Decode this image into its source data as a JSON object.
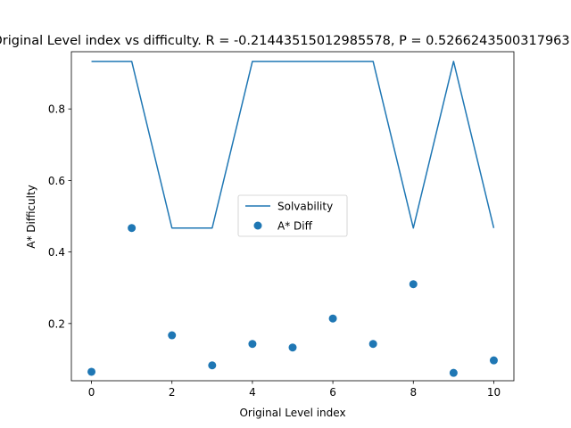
{
  "chart_data": {
    "type": "line",
    "title": "Original Level index vs difficulty. R = -0.21443515012985578, P = 0.5266243500317963",
    "xlabel": "Original Level index",
    "ylabel": "A* Difficulty",
    "xlim": [
      -0.5,
      10.5
    ],
    "ylim": [
      0.04,
      0.96
    ],
    "xticks": [
      0,
      2,
      4,
      6,
      8,
      10
    ],
    "yticks": [
      0.2,
      0.4,
      0.6,
      0.8
    ],
    "ytick_labels": [
      "0.2",
      "0.4",
      "0.6",
      "0.8"
    ],
    "legend_position": "center",
    "series": [
      {
        "name": "Solvability",
        "type": "line",
        "color": "#1f77b4",
        "x": [
          0,
          1,
          2,
          3,
          4,
          5,
          6,
          7,
          8,
          9,
          10
        ],
        "values": [
          0.933,
          0.933,
          0.467,
          0.467,
          0.933,
          0.933,
          0.933,
          0.933,
          0.467,
          0.933,
          0.467
        ]
      },
      {
        "name": "A* Diff",
        "type": "scatter",
        "color": "#1f77b4",
        "x": [
          0,
          1,
          2,
          3,
          4,
          5,
          6,
          7,
          8,
          9,
          10
        ],
        "values": [
          0.065,
          0.467,
          0.167,
          0.083,
          0.143,
          0.133,
          0.214,
          0.143,
          0.31,
          0.062,
          0.097
        ]
      }
    ]
  }
}
